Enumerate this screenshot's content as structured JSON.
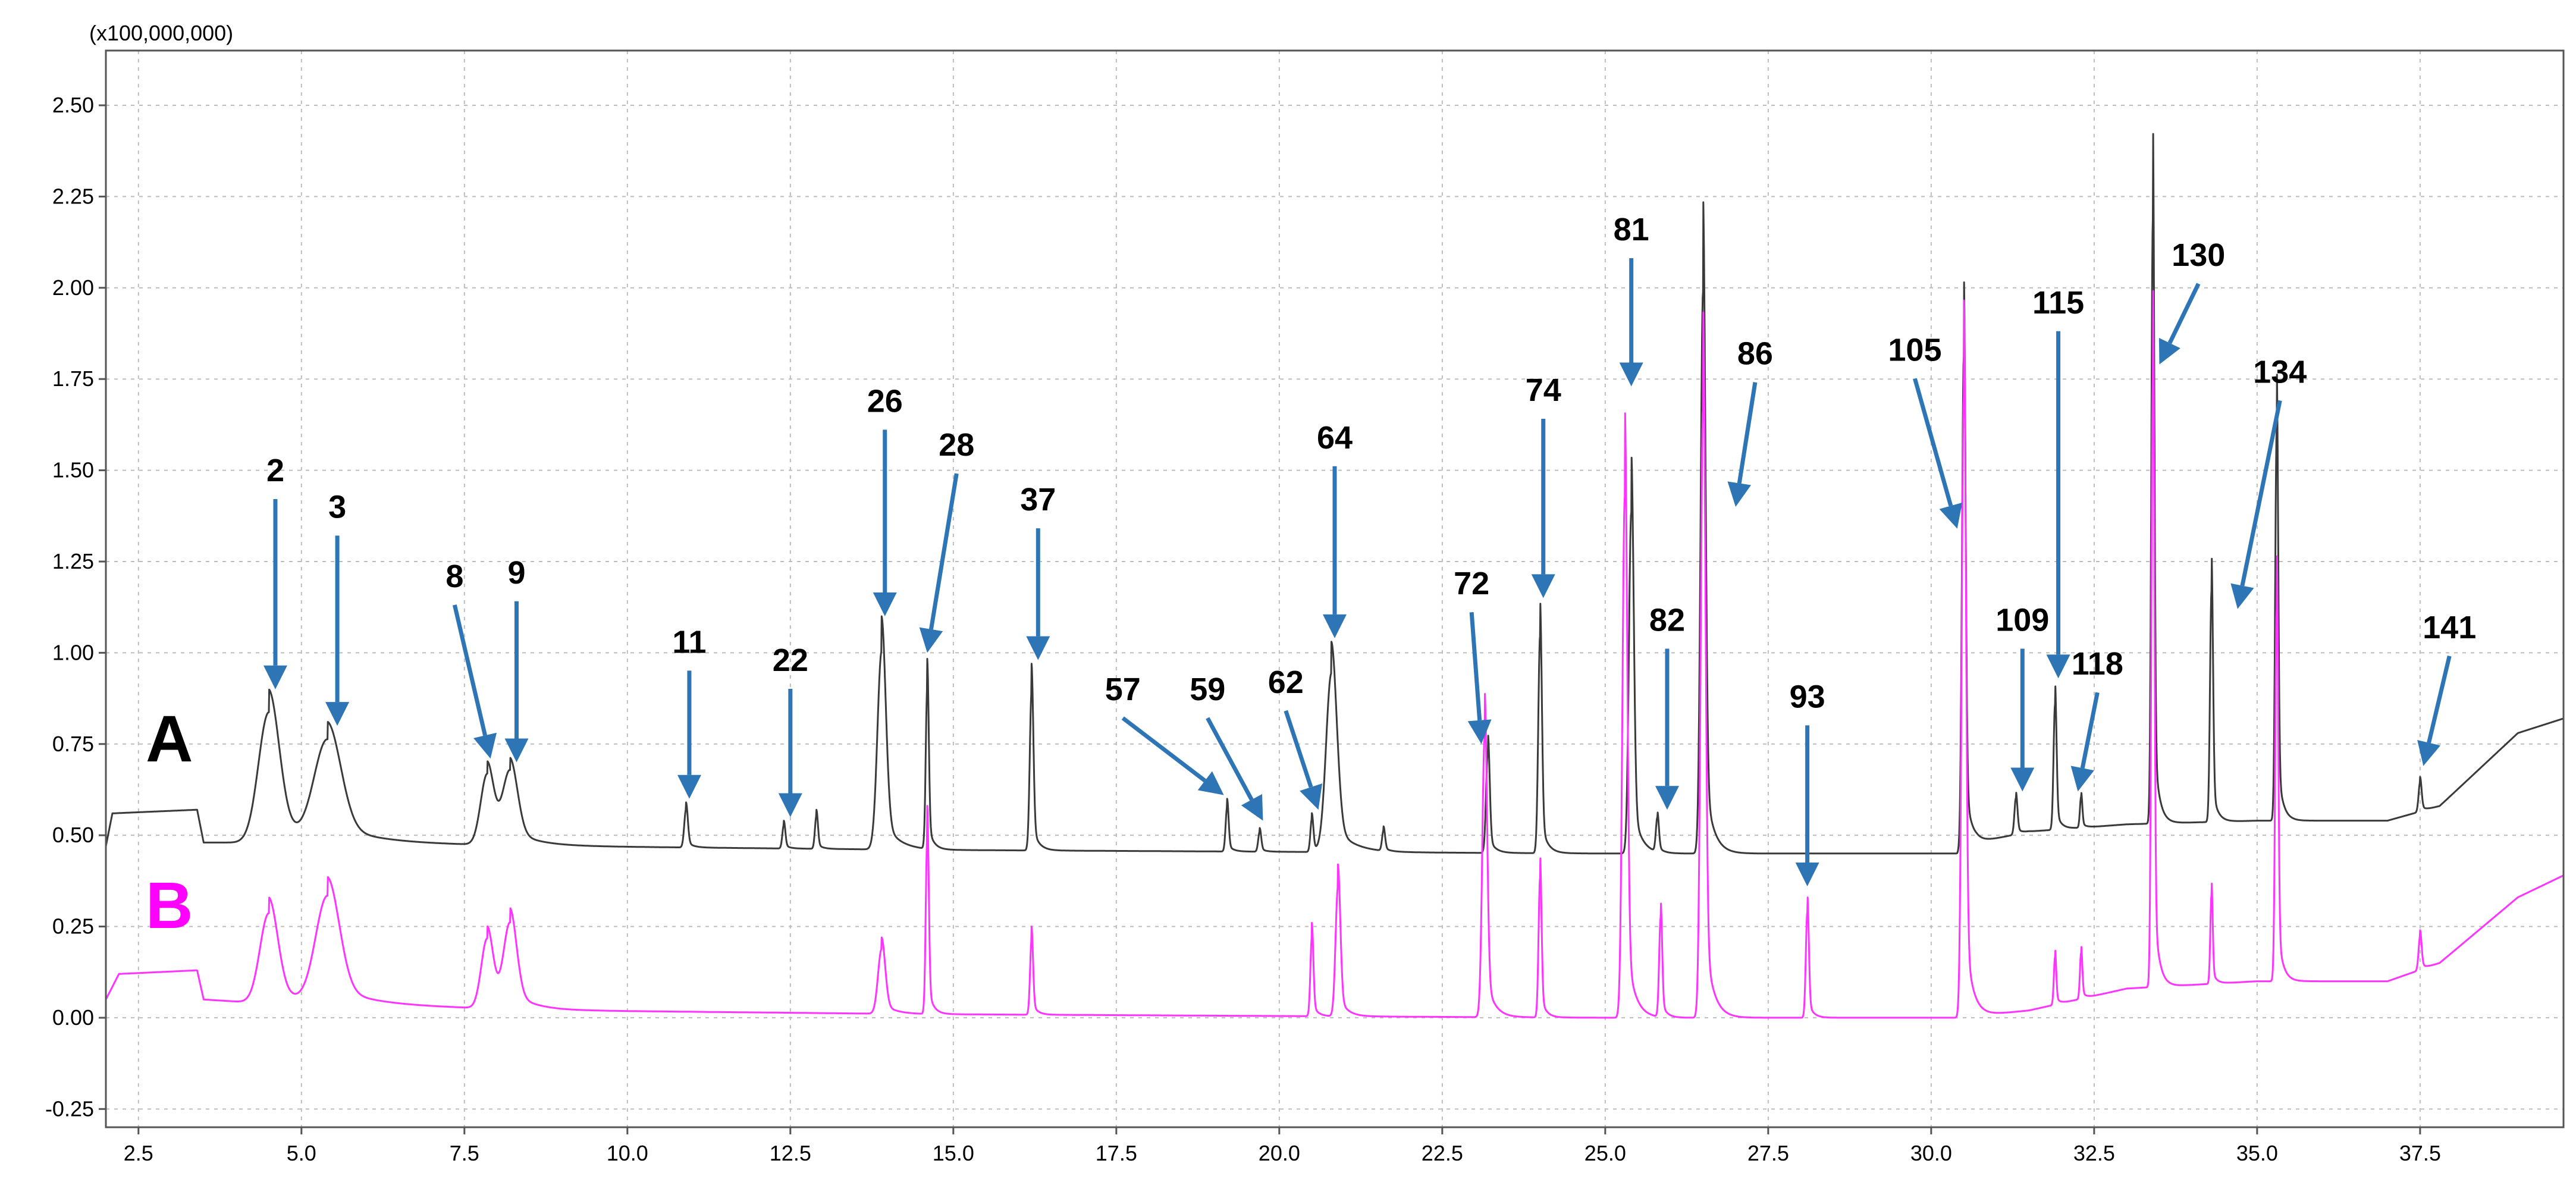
{
  "chart_data": {
    "type": "line",
    "title": "",
    "xlabel": "",
    "ylabel": "",
    "y_scale_label": "(x100,000,000)",
    "xlim": [
      2.0,
      39.7
    ],
    "ylim": [
      -0.3,
      2.65
    ],
    "x_ticks": [
      "2.5",
      "5.0",
      "7.5",
      "10.0",
      "12.5",
      "15.0",
      "17.5",
      "20.0",
      "22.5",
      "25.0",
      "27.5",
      "30.0",
      "32.5",
      "35.0",
      "37.5"
    ],
    "y_ticks": [
      "-0.25",
      "0.00",
      "0.25",
      "0.50",
      "0.75",
      "1.00",
      "1.25",
      "1.50",
      "1.75",
      "2.00",
      "2.25",
      "2.50"
    ],
    "grid": true,
    "series": [
      {
        "name": "A",
        "color": "#3a3a3a",
        "baseline": [
          [
            2.0,
            0.47
          ],
          [
            2.1,
            0.56
          ],
          [
            3.4,
            0.57
          ],
          [
            3.5,
            0.48
          ],
          [
            4.4,
            0.48
          ],
          [
            9.0,
            0.47
          ],
          [
            14.5,
            0.46
          ],
          [
            25.0,
            0.45
          ],
          [
            30.4,
            0.45
          ],
          [
            30.7,
            0.48
          ],
          [
            31.5,
            0.51
          ],
          [
            33.0,
            0.53
          ],
          [
            35.0,
            0.54
          ],
          [
            37.0,
            0.54
          ],
          [
            37.8,
            0.58
          ],
          [
            39.0,
            0.78
          ],
          [
            39.7,
            0.82
          ]
        ],
        "peaks": [
          {
            "t": 4.5,
            "h": 0.9,
            "w": 0.35
          },
          {
            "t": 5.4,
            "h": 0.8,
            "w": 0.45
          },
          {
            "t": 7.85,
            "h": 0.7,
            "w": 0.22
          },
          {
            "t": 8.2,
            "h": 0.7,
            "w": 0.25
          },
          {
            "t": 10.9,
            "h": 0.59,
            "w": 0.06
          },
          {
            "t": 12.4,
            "h": 0.54,
            "w": 0.05
          },
          {
            "t": 12.9,
            "h": 0.57,
            "w": 0.05
          },
          {
            "t": 13.9,
            "h": 1.1,
            "w": 0.14
          },
          {
            "t": 14.6,
            "h": 0.98,
            "w": 0.05
          },
          {
            "t": 16.2,
            "h": 0.97,
            "w": 0.06
          },
          {
            "t": 19.2,
            "h": 0.6,
            "w": 0.05
          },
          {
            "t": 19.7,
            "h": 0.52,
            "w": 0.05
          },
          {
            "t": 20.5,
            "h": 0.56,
            "w": 0.05
          },
          {
            "t": 20.8,
            "h": 1.03,
            "w": 0.18
          },
          {
            "t": 21.6,
            "h": 0.52,
            "w": 0.05
          },
          {
            "t": 23.2,
            "h": 0.78,
            "w": 0.06
          },
          {
            "t": 24.0,
            "h": 1.15,
            "w": 0.06
          },
          {
            "t": 25.4,
            "h": 1.55,
            "w": 0.08
          },
          {
            "t": 25.8,
            "h": 0.56,
            "w": 0.05
          },
          {
            "t": 26.5,
            "h": 2.26,
            "w": 0.08
          },
          {
            "t": 30.5,
            "h": 2.05,
            "w": 0.06
          },
          {
            "t": 31.3,
            "h": 0.62,
            "w": 0.05
          },
          {
            "t": 31.9,
            "h": 0.92,
            "w": 0.05
          },
          {
            "t": 32.3,
            "h": 0.62,
            "w": 0.04
          },
          {
            "t": 33.4,
            "h": 2.48,
            "w": 0.05
          },
          {
            "t": 34.3,
            "h": 1.28,
            "w": 0.05
          },
          {
            "t": 35.3,
            "h": 1.8,
            "w": 0.05
          },
          {
            "t": 37.5,
            "h": 0.66,
            "w": 0.05
          }
        ]
      },
      {
        "name": "B",
        "color": "#ff33ff",
        "baseline": [
          [
            2.0,
            0.05
          ],
          [
            2.2,
            0.12
          ],
          [
            3.4,
            0.13
          ],
          [
            3.5,
            0.05
          ],
          [
            4.4,
            0.04
          ],
          [
            9.0,
            0.02
          ],
          [
            14.5,
            0.01
          ],
          [
            25.0,
            0.0
          ],
          [
            30.4,
            0.0
          ],
          [
            31.5,
            0.02
          ],
          [
            33.0,
            0.08
          ],
          [
            35.0,
            0.1
          ],
          [
            37.0,
            0.1
          ],
          [
            37.8,
            0.15
          ],
          [
            39.0,
            0.33
          ],
          [
            39.7,
            0.39
          ]
        ],
        "peaks": [
          {
            "t": 4.5,
            "h": 0.33,
            "w": 0.3
          },
          {
            "t": 5.4,
            "h": 0.38,
            "w": 0.4
          },
          {
            "t": 7.85,
            "h": 0.25,
            "w": 0.2
          },
          {
            "t": 8.2,
            "h": 0.29,
            "w": 0.22
          },
          {
            "t": 13.9,
            "h": 0.22,
            "w": 0.12
          },
          {
            "t": 14.6,
            "h": 0.58,
            "w": 0.05
          },
          {
            "t": 16.2,
            "h": 0.25,
            "w": 0.05
          },
          {
            "t": 20.5,
            "h": 0.26,
            "w": 0.05
          },
          {
            "t": 20.9,
            "h": 0.42,
            "w": 0.08
          },
          {
            "t": 23.15,
            "h": 0.9,
            "w": 0.08
          },
          {
            "t": 24.0,
            "h": 0.45,
            "w": 0.05
          },
          {
            "t": 25.3,
            "h": 1.68,
            "w": 0.08
          },
          {
            "t": 25.85,
            "h": 0.32,
            "w": 0.05
          },
          {
            "t": 26.5,
            "h": 1.96,
            "w": 0.08
          },
          {
            "t": 28.1,
            "h": 0.34,
            "w": 0.05
          },
          {
            "t": 30.5,
            "h": 2.0,
            "w": 0.07
          },
          {
            "t": 31.9,
            "h": 0.19,
            "w": 0.04
          },
          {
            "t": 32.3,
            "h": 0.2,
            "w": 0.04
          },
          {
            "t": 33.4,
            "h": 2.05,
            "w": 0.05
          },
          {
            "t": 34.3,
            "h": 0.38,
            "w": 0.04
          },
          {
            "t": 35.3,
            "h": 1.3,
            "w": 0.05
          },
          {
            "t": 37.5,
            "h": 0.24,
            "w": 0.05
          }
        ]
      }
    ],
    "annotations": [
      {
        "label": "2",
        "lx": 4.6,
        "ly": 1.47,
        "ax": 4.6,
        "ay": 0.9
      },
      {
        "label": "3",
        "lx": 5.55,
        "ly": 1.37,
        "ax": 5.55,
        "ay": 0.8
      },
      {
        "label": "8",
        "lx": 7.35,
        "ly": 1.18,
        "ax": 7.9,
        "ay": 0.71
      },
      {
        "label": "9",
        "lx": 8.3,
        "ly": 1.19,
        "ax": 8.3,
        "ay": 0.7
      },
      {
        "label": "11",
        "lx": 10.95,
        "ly": 1.0,
        "ax": 10.95,
        "ay": 0.6
      },
      {
        "label": "22",
        "lx": 12.5,
        "ly": 0.95,
        "ax": 12.5,
        "ay": 0.55
      },
      {
        "label": "26",
        "lx": 13.95,
        "ly": 1.66,
        "ax": 13.95,
        "ay": 1.1
      },
      {
        "label": "28",
        "lx": 15.05,
        "ly": 1.54,
        "ax": 14.6,
        "ay": 1.0
      },
      {
        "label": "37",
        "lx": 16.3,
        "ly": 1.39,
        "ax": 16.3,
        "ay": 0.98
      },
      {
        "label": "57",
        "lx": 17.6,
        "ly": 0.87,
        "ax": 19.15,
        "ay": 0.61
      },
      {
        "label": "59",
        "lx": 18.9,
        "ly": 0.87,
        "ax": 19.75,
        "ay": 0.54
      },
      {
        "label": "62",
        "lx": 20.1,
        "ly": 0.89,
        "ax": 20.6,
        "ay": 0.57
      },
      {
        "label": "64",
        "lx": 20.85,
        "ly": 1.56,
        "ax": 20.85,
        "ay": 1.04
      },
      {
        "label": "72",
        "lx": 22.95,
        "ly": 1.16,
        "ax": 23.1,
        "ay": 0.75
      },
      {
        "label": "74",
        "lx": 24.05,
        "ly": 1.69,
        "ax": 24.05,
        "ay": 1.15
      },
      {
        "label": "81",
        "lx": 25.4,
        "ly": 2.13,
        "ax": 25.4,
        "ay": 1.73
      },
      {
        "label": "82",
        "lx": 25.95,
        "ly": 1.06,
        "ax": 25.95,
        "ay": 0.57
      },
      {
        "label": "86",
        "lx": 27.3,
        "ly": 1.79,
        "ax": 27.0,
        "ay": 1.4
      },
      {
        "label": "93",
        "lx": 28.1,
        "ly": 0.85,
        "ax": 28.1,
        "ay": 0.36
      },
      {
        "label": "105",
        "lx": 29.75,
        "ly": 1.8,
        "ax": 30.4,
        "ay": 1.34
      },
      {
        "label": "109",
        "lx": 31.4,
        "ly": 1.06,
        "ax": 31.4,
        "ay": 0.62
      },
      {
        "label": "115",
        "lx": 31.95,
        "ly": 1.93,
        "ax": 31.95,
        "ay": 0.93
      },
      {
        "label": "118",
        "lx": 32.55,
        "ly": 0.94,
        "ax": 32.25,
        "ay": 0.62
      },
      {
        "label": "130",
        "lx": 34.1,
        "ly": 2.06,
        "ax": 33.5,
        "ay": 1.79
      },
      {
        "label": "134",
        "lx": 35.35,
        "ly": 1.74,
        "ax": 34.7,
        "ay": 1.12
      },
      {
        "label": "141",
        "lx": 37.95,
        "ly": 1.04,
        "ax": 37.55,
        "ay": 0.69
      }
    ]
  }
}
